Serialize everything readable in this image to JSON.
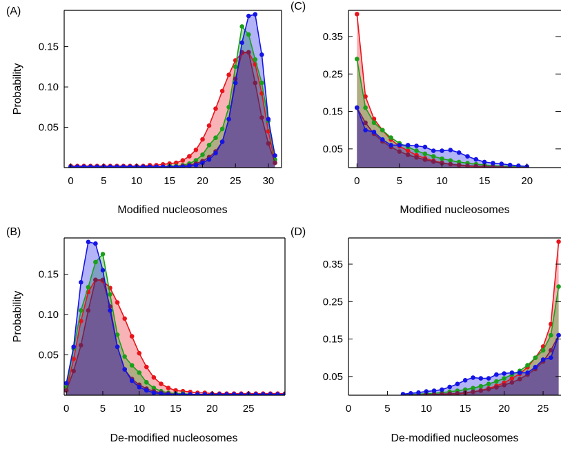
{
  "chart_data": [
    {
      "panel_label": "(A)",
      "type": "area",
      "xlabel": "Modified nucleosomes",
      "ylabel": "Probability",
      "xlim": [
        -1,
        32
      ],
      "ylim": [
        0,
        0.195
      ],
      "xticks": [
        0,
        5,
        10,
        15,
        20,
        25,
        30
      ],
      "yticks": [
        0.05,
        0.1,
        0.15
      ],
      "ytick_labels": [
        "0.05",
        "0.10",
        "0.15"
      ],
      "right_ticks": false,
      "series": [
        {
          "color": "#e8141b",
          "x": [
            0,
            1,
            2,
            3,
            4,
            5,
            6,
            7,
            8,
            9,
            10,
            11,
            12,
            13,
            14,
            15,
            16,
            17,
            18,
            19,
            20,
            21,
            22,
            23,
            24,
            25,
            26,
            27,
            28,
            29,
            30,
            31
          ],
          "y": [
            0.002,
            0.002,
            0.002,
            0.002,
            0.002,
            0.002,
            0.002,
            0.002,
            0.002,
            0.002,
            0.002,
            0.002,
            0.003,
            0.003,
            0.004,
            0.005,
            0.006,
            0.009,
            0.014,
            0.022,
            0.035,
            0.052,
            0.073,
            0.095,
            0.115,
            0.133,
            0.142,
            0.143,
            0.128,
            0.092,
            0.045,
            0.006
          ]
        },
        {
          "color": "#1aa01a",
          "x": [
            0,
            1,
            2,
            3,
            4,
            5,
            6,
            7,
            8,
            9,
            10,
            11,
            12,
            13,
            14,
            15,
            16,
            17,
            18,
            19,
            20,
            21,
            22,
            23,
            24,
            25,
            26,
            27,
            28,
            29,
            30,
            31
          ],
          "y": [
            0.001,
            0.001,
            0.001,
            0.001,
            0.001,
            0.001,
            0.001,
            0.001,
            0.001,
            0.001,
            0.001,
            0.001,
            0.001,
            0.001,
            0.001,
            0.002,
            0.002,
            0.003,
            0.005,
            0.009,
            0.016,
            0.028,
            0.037,
            0.048,
            0.075,
            0.125,
            0.175,
            0.165,
            0.134,
            0.105,
            0.058,
            0.01
          ]
        },
        {
          "color": "#7a1f4c",
          "x": [
            0,
            1,
            2,
            3,
            4,
            5,
            6,
            7,
            8,
            9,
            10,
            11,
            12,
            13,
            14,
            15,
            16,
            17,
            18,
            19,
            20,
            21,
            22,
            23,
            24,
            25,
            26,
            27,
            28,
            29,
            30,
            31
          ],
          "y": [
            0.001,
            0.001,
            0.001,
            0.001,
            0.001,
            0.001,
            0.001,
            0.001,
            0.001,
            0.001,
            0.001,
            0.001,
            0.001,
            0.001,
            0.001,
            0.001,
            0.001,
            0.002,
            0.003,
            0.005,
            0.008,
            0.013,
            0.02,
            0.032,
            0.06,
            0.11,
            0.143,
            0.143,
            0.105,
            0.062,
            0.03,
            0.006
          ]
        },
        {
          "color": "#1414e6",
          "x": [
            0,
            1,
            2,
            3,
            4,
            5,
            6,
            7,
            8,
            9,
            10,
            11,
            12,
            13,
            14,
            15,
            16,
            17,
            18,
            19,
            20,
            21,
            22,
            23,
            24,
            25,
            26,
            27,
            28,
            29,
            30,
            31
          ],
          "y": [
            0.001,
            0.001,
            0.001,
            0.001,
            0.001,
            0.001,
            0.001,
            0.001,
            0.001,
            0.001,
            0.001,
            0.001,
            0.001,
            0.001,
            0.001,
            0.001,
            0.001,
            0.001,
            0.002,
            0.003,
            0.006,
            0.01,
            0.018,
            0.032,
            0.06,
            0.105,
            0.155,
            0.188,
            0.19,
            0.14,
            0.06,
            0.015
          ]
        }
      ]
    },
    {
      "panel_label": "(C)",
      "type": "area",
      "xlabel": "Modified nucleosomes",
      "ylabel": "",
      "xlim": [
        -1,
        24
      ],
      "ylim": [
        0,
        0.42
      ],
      "xticks": [
        0,
        5,
        10,
        15,
        20
      ],
      "yticks": [
        0.05,
        0.15,
        0.25,
        0.35
      ],
      "ytick_labels": [
        "0.05",
        "0.15",
        "0.25",
        "0.35"
      ],
      "right_ticks": true,
      "series": [
        {
          "color": "#e8141b",
          "x": [
            0,
            1,
            2,
            3,
            4,
            5,
            6,
            7,
            8,
            9,
            10,
            11,
            12,
            13,
            14,
            15,
            16,
            17,
            18,
            19,
            20
          ],
          "y": [
            0.41,
            0.19,
            0.13,
            0.1,
            0.075,
            0.057,
            0.045,
            0.033,
            0.025,
            0.018,
            0.013,
            0.009,
            0.006,
            0.004,
            0.003,
            0.002,
            0.001,
            0.001,
            0.0005,
            0.0003,
            0.0002
          ]
        },
        {
          "color": "#1aa01a",
          "x": [
            0,
            1,
            2,
            3,
            4,
            5,
            6,
            7,
            8,
            9,
            10,
            11,
            12,
            13,
            14,
            15,
            16,
            17,
            18,
            19,
            20
          ],
          "y": [
            0.29,
            0.16,
            0.12,
            0.1,
            0.08,
            0.065,
            0.055,
            0.045,
            0.037,
            0.03,
            0.024,
            0.019,
            0.015,
            0.012,
            0.009,
            0.007,
            0.005,
            0.004,
            0.003,
            0.002,
            0.001
          ]
        },
        {
          "color": "#7a1f4c",
          "x": [
            0,
            1,
            2,
            3,
            4,
            5,
            6,
            7,
            8,
            9,
            10,
            11,
            12,
            13,
            14,
            15,
            16,
            17,
            18,
            19,
            20
          ],
          "y": [
            0.16,
            0.12,
            0.09,
            0.07,
            0.055,
            0.043,
            0.034,
            0.027,
            0.021,
            0.016,
            0.012,
            0.009,
            0.007,
            0.005,
            0.004,
            0.003,
            0.002,
            0.0015,
            0.001,
            0.0005,
            0.0003
          ]
        },
        {
          "color": "#1414e6",
          "x": [
            0,
            1,
            2,
            3,
            4,
            5,
            6,
            7,
            8,
            9,
            10,
            11,
            12,
            13,
            14,
            15,
            16,
            17,
            18,
            19,
            20
          ],
          "y": [
            0.16,
            0.1,
            0.095,
            0.075,
            0.06,
            0.06,
            0.06,
            0.058,
            0.055,
            0.045,
            0.045,
            0.047,
            0.04,
            0.03,
            0.022,
            0.015,
            0.012,
            0.01,
            0.007,
            0.005,
            0.003
          ]
        }
      ]
    },
    {
      "panel_label": "(B)",
      "type": "area",
      "xlabel": "De-modified nucleosomes",
      "ylabel": "Probability",
      "xlim": [
        -0.3,
        30
      ],
      "ylim": [
        0,
        0.195
      ],
      "xticks": [
        0,
        5,
        10,
        15,
        20,
        25
      ],
      "yticks": [
        0.05,
        0.1,
        0.15
      ],
      "ytick_labels": [
        "0.05",
        "0.10",
        "0.15"
      ],
      "right_ticks": false,
      "series": [
        {
          "color": "#e8141b",
          "x": [
            0,
            1,
            2,
            3,
            4,
            5,
            6,
            7,
            8,
            9,
            10,
            11,
            12,
            13,
            14,
            15,
            16,
            17,
            18,
            19,
            20,
            21,
            22,
            23,
            24,
            25,
            26,
            27,
            28,
            29,
            30
          ],
          "y": [
            0.006,
            0.045,
            0.092,
            0.128,
            0.143,
            0.142,
            0.133,
            0.115,
            0.095,
            0.073,
            0.052,
            0.035,
            0.022,
            0.014,
            0.009,
            0.006,
            0.005,
            0.004,
            0.003,
            0.003,
            0.002,
            0.002,
            0.002,
            0.002,
            0.002,
            0.002,
            0.002,
            0.002,
            0.002,
            0.002,
            0.002
          ]
        },
        {
          "color": "#1aa01a",
          "x": [
            0,
            1,
            2,
            3,
            4,
            5,
            6,
            7,
            8,
            9,
            10,
            11,
            12,
            13,
            14,
            15,
            16,
            17,
            18,
            19,
            20,
            21,
            22,
            23,
            24,
            25,
            26,
            27,
            28,
            29,
            30
          ],
          "y": [
            0.01,
            0.058,
            0.105,
            0.134,
            0.165,
            0.175,
            0.125,
            0.075,
            0.048,
            0.037,
            0.028,
            0.016,
            0.009,
            0.005,
            0.003,
            0.002,
            0.002,
            0.001,
            0.001,
            0.001,
            0.001,
            0.001,
            0.001,
            0.001,
            0.001,
            0.001,
            0.001,
            0.001,
            0.001,
            0.001,
            0.001
          ]
        },
        {
          "color": "#7a1f4c",
          "x": [
            0,
            1,
            2,
            3,
            4,
            5,
            6,
            7,
            8,
            9,
            10,
            11,
            12,
            13,
            14,
            15,
            16,
            17,
            18,
            19,
            20,
            21,
            22,
            23,
            24,
            25,
            26,
            27,
            28,
            29,
            30
          ],
          "y": [
            0.006,
            0.03,
            0.062,
            0.105,
            0.143,
            0.143,
            0.11,
            0.06,
            0.032,
            0.02,
            0.013,
            0.008,
            0.005,
            0.003,
            0.002,
            0.001,
            0.001,
            0.001,
            0.001,
            0.001,
            0.001,
            0.001,
            0.001,
            0.001,
            0.001,
            0.001,
            0.001,
            0.001,
            0.001,
            0.001,
            0.001
          ]
        },
        {
          "color": "#1414e6",
          "x": [
            0,
            1,
            2,
            3,
            4,
            5,
            6,
            7,
            8,
            9,
            10,
            11,
            12,
            13,
            14,
            15,
            16,
            17,
            18,
            19,
            20,
            21,
            22,
            23,
            24,
            25,
            26,
            27,
            28,
            29,
            30
          ],
          "y": [
            0.015,
            0.06,
            0.14,
            0.19,
            0.188,
            0.155,
            0.105,
            0.06,
            0.032,
            0.018,
            0.01,
            0.006,
            0.003,
            0.002,
            0.001,
            0.001,
            0.001,
            0.001,
            0.001,
            0.001,
            0.001,
            0.001,
            0.001,
            0.001,
            0.001,
            0.001,
            0.001,
            0.001,
            0.001,
            0.001,
            0.001
          ]
        }
      ]
    },
    {
      "panel_label": "(D)",
      "type": "area",
      "xlabel": "De-modified nucleosomes",
      "ylabel": "",
      "xlim": [
        0,
        27.3
      ],
      "ylim": [
        0,
        0.42
      ],
      "xticks": [
        0,
        5,
        10,
        15,
        20,
        25
      ],
      "yticks": [
        0.05,
        0.15,
        0.25,
        0.35
      ],
      "ytick_labels": [
        "0.05",
        "0.15",
        "0.25",
        "0.35"
      ],
      "right_ticks": true,
      "series": [
        {
          "color": "#e8141b",
          "x": [
            7,
            8,
            9,
            10,
            11,
            12,
            13,
            14,
            15,
            16,
            17,
            18,
            19,
            20,
            21,
            22,
            23,
            24,
            25,
            26,
            27
          ],
          "y": [
            0.0002,
            0.0003,
            0.0005,
            0.001,
            0.001,
            0.002,
            0.003,
            0.004,
            0.006,
            0.009,
            0.013,
            0.018,
            0.025,
            0.033,
            0.045,
            0.057,
            0.075,
            0.1,
            0.13,
            0.19,
            0.41
          ]
        },
        {
          "color": "#1aa01a",
          "x": [
            7,
            8,
            9,
            10,
            11,
            12,
            13,
            14,
            15,
            16,
            17,
            18,
            19,
            20,
            21,
            22,
            23,
            24,
            25,
            26,
            27
          ],
          "y": [
            0.001,
            0.002,
            0.003,
            0.004,
            0.005,
            0.007,
            0.009,
            0.012,
            0.015,
            0.019,
            0.024,
            0.03,
            0.037,
            0.045,
            0.055,
            0.065,
            0.08,
            0.1,
            0.12,
            0.16,
            0.29
          ]
        },
        {
          "color": "#7a1f4c",
          "x": [
            7,
            8,
            9,
            10,
            11,
            12,
            13,
            14,
            15,
            16,
            17,
            18,
            19,
            20,
            21,
            22,
            23,
            24,
            25,
            26,
            27
          ],
          "y": [
            0.0003,
            0.0005,
            0.001,
            0.0015,
            0.002,
            0.003,
            0.004,
            0.005,
            0.007,
            0.009,
            0.012,
            0.016,
            0.021,
            0.027,
            0.034,
            0.043,
            0.055,
            0.07,
            0.09,
            0.12,
            0.16
          ]
        },
        {
          "color": "#1414e6",
          "x": [
            7,
            8,
            9,
            10,
            11,
            12,
            13,
            14,
            15,
            16,
            17,
            18,
            19,
            20,
            21,
            22,
            23,
            24,
            25,
            26,
            27
          ],
          "y": [
            0.003,
            0.005,
            0.007,
            0.01,
            0.012,
            0.015,
            0.022,
            0.03,
            0.04,
            0.047,
            0.045,
            0.045,
            0.055,
            0.058,
            0.06,
            0.06,
            0.06,
            0.075,
            0.095,
            0.1,
            0.16
          ]
        }
      ]
    }
  ]
}
